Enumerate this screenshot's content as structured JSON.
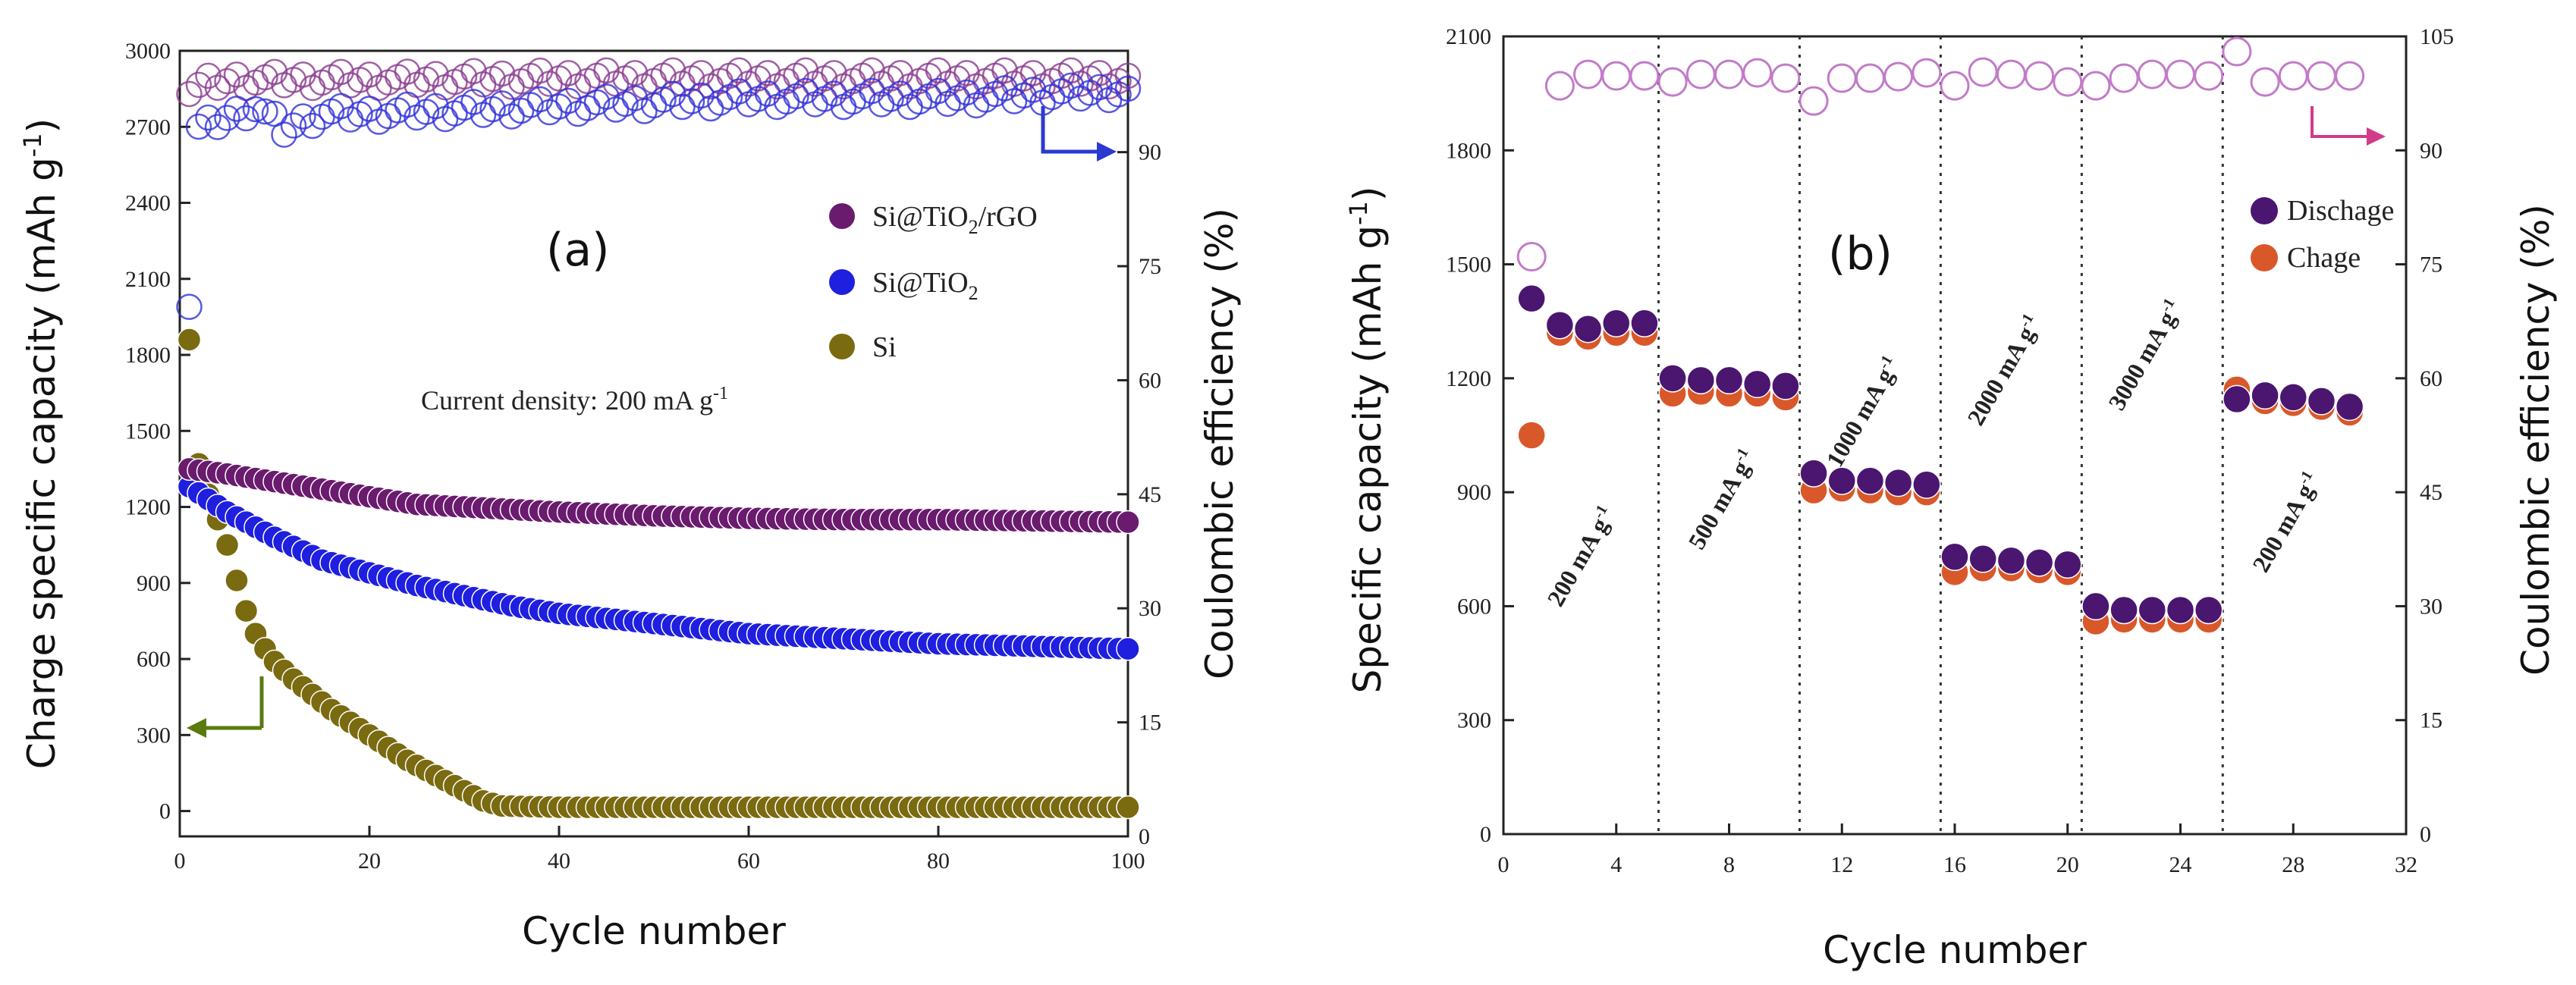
{
  "chart_data": [
    {
      "type": "scatter",
      "panel_label": "(a)",
      "xlabel": "Cycle number",
      "ylabel": "Charge specific capacity",
      "ylabel_unit": "(mAh g",
      "ylabel_unit_sup": "-1",
      "ylabel_unit_close": ")",
      "y2label": "Coulombic efficiency (%)",
      "xlim": [
        0,
        100
      ],
      "ylim": [
        -100,
        3000
      ],
      "y2lim": [
        0,
        103.33
      ],
      "xticks": [
        0,
        20,
        40,
        60,
        80,
        100
      ],
      "yticks": [
        0,
        300,
        600,
        900,
        1200,
        1500,
        1800,
        2100,
        2400,
        2700,
        3000
      ],
      "y2ticks": [
        0,
        15,
        30,
        45,
        60,
        75,
        90
      ],
      "annotation_prefix": "Current density:",
      "annotation_value": "200 mA g",
      "annotation_sup": "-1",
      "legend": [
        {
          "label": "Si@TiO",
          "sub": "2",
          "suffix": "/rGO",
          "color": "#6a1b6e"
        },
        {
          "label": "Si@TiO",
          "sub": "2",
          "suffix": "",
          "color": "#1f1fe0"
        },
        {
          "label": "Si",
          "sub": "",
          "suffix": "",
          "color": "#7a6a10"
        }
      ],
      "series": [
        {
          "name": "Si@TiO2/rGO capacity",
          "color": "#6a1b6e",
          "points": [
            [
              1,
              1350
            ],
            [
              5,
              1330
            ],
            [
              10,
              1300
            ],
            [
              15,
              1270
            ],
            [
              20,
              1240
            ],
            [
              25,
              1210
            ],
            [
              30,
              1200
            ],
            [
              40,
              1180
            ],
            [
              50,
              1165
            ],
            [
              60,
              1155
            ],
            [
              70,
              1150
            ],
            [
              80,
              1150
            ],
            [
              90,
              1145
            ],
            [
              100,
              1140
            ]
          ]
        },
        {
          "name": "Si@TiO2 capacity",
          "color": "#1f1fe0",
          "points": [
            [
              1,
              1280
            ],
            [
              5,
              1180
            ],
            [
              10,
              1080
            ],
            [
              15,
              990
            ],
            [
              20,
              940
            ],
            [
              25,
              890
            ],
            [
              30,
              850
            ],
            [
              35,
              810
            ],
            [
              40,
              780
            ],
            [
              50,
              740
            ],
            [
              60,
              700
            ],
            [
              70,
              680
            ],
            [
              80,
              660
            ],
            [
              90,
              650
            ],
            [
              100,
              640
            ]
          ]
        },
        {
          "name": "Si capacity",
          "color": "#7a6a10",
          "points": [
            [
              1,
              1860
            ],
            [
              2,
              1370
            ],
            [
              3,
              1250
            ],
            [
              4,
              1150
            ],
            [
              5,
              1050
            ],
            [
              6,
              910
            ],
            [
              7,
              790
            ],
            [
              8,
              700
            ],
            [
              9,
              640
            ],
            [
              10,
              590
            ],
            [
              12,
              520
            ],
            [
              14,
              460
            ],
            [
              16,
              400
            ],
            [
              18,
              350
            ],
            [
              20,
              300
            ],
            [
              22,
              250
            ],
            [
              24,
              200
            ],
            [
              26,
              160
            ],
            [
              28,
              120
            ],
            [
              30,
              80
            ],
            [
              32,
              40
            ],
            [
              34,
              20
            ],
            [
              40,
              15
            ],
            [
              60,
              15
            ],
            [
              80,
              15
            ],
            [
              100,
              15
            ]
          ]
        },
        {
          "name": "Si@TiO2/rGO efficiency",
          "color": "#8a3a8e",
          "points": [
            [
              1,
              98
            ],
            [
              3,
              99
            ],
            [
              6,
              99.5
            ],
            [
              10,
              99.5
            ],
            [
              20,
              99.5
            ],
            [
              40,
              99.7
            ],
            [
              60,
              99.7
            ],
            [
              80,
              99.7
            ],
            [
              100,
              99.7
            ]
          ]
        },
        {
          "name": "Si@TiO2 efficiency",
          "color": "#3030d8",
          "points": [
            [
              1,
              70
            ],
            [
              1,
              72
            ],
            [
              2,
              93
            ],
            [
              4,
              94
            ],
            [
              8,
              96
            ],
            [
              11,
              93
            ],
            [
              15,
              95
            ],
            [
              20,
              95
            ],
            [
              30,
              95.5
            ],
            [
              40,
              96
            ],
            [
              60,
              97
            ],
            [
              80,
              97
            ],
            [
              100,
              98
            ]
          ]
        }
      ]
    },
    {
      "type": "scatter",
      "panel_label": "(b)",
      "xlabel": "Cycle number",
      "ylabel": "Specific capacity",
      "ylabel_unit": "(mAh g",
      "ylabel_unit_sup": "-1",
      "ylabel_unit_close": ")",
      "y2label": "Coulombic efficiency (%)",
      "xlim": [
        0,
        32
      ],
      "ylim": [
        0,
        2100
      ],
      "y2lim": [
        0,
        105
      ],
      "xticks": [
        0,
        4,
        8,
        12,
        16,
        20,
        24,
        28,
        32
      ],
      "yticks": [
        0,
        300,
        600,
        900,
        1200,
        1500,
        1800,
        2100
      ],
      "y2ticks": [
        0,
        15,
        30,
        45,
        60,
        75,
        90,
        105
      ],
      "rate_separators": [
        5.5,
        10.5,
        15.5,
        20.5,
        25.5
      ],
      "rate_labels": [
        "200 mA g",
        "500 mA g",
        "1000 mA g",
        "2000 mA g",
        "3000 mA g",
        "200 mA g"
      ],
      "rate_label_sup": "-1",
      "legend": [
        {
          "label": "Dischage",
          "color": "#4a1670"
        },
        {
          "label": "Chage",
          "color": "#d9582a"
        }
      ],
      "series": [
        {
          "name": "Dischage",
          "color": "#4a1670",
          "x": [
            1,
            2,
            3,
            4,
            5,
            6,
            7,
            8,
            9,
            10,
            11,
            12,
            13,
            14,
            15,
            16,
            17,
            18,
            19,
            20,
            21,
            22,
            23,
            24,
            25,
            26,
            27,
            28,
            29,
            30
          ],
          "values": [
            1410,
            1340,
            1330,
            1345,
            1345,
            1200,
            1195,
            1195,
            1185,
            1180,
            950,
            930,
            930,
            925,
            920,
            730,
            725,
            720,
            715,
            710,
            600,
            590,
            590,
            590,
            590,
            1145,
            1155,
            1150,
            1140,
            1125
          ]
        },
        {
          "name": "Chage",
          "color": "#d9582a",
          "x": [
            1,
            2,
            3,
            4,
            5,
            6,
            7,
            8,
            9,
            10,
            11,
            12,
            13,
            14,
            15,
            16,
            17,
            18,
            19,
            20,
            21,
            22,
            23,
            24,
            25,
            26,
            27,
            28,
            29,
            30
          ],
          "values": [
            1050,
            1320,
            1310,
            1320,
            1320,
            1160,
            1165,
            1160,
            1160,
            1150,
            905,
            910,
            905,
            900,
            900,
            690,
            700,
            700,
            695,
            690,
            560,
            565,
            565,
            565,
            565,
            1170,
            1140,
            1135,
            1125,
            1110
          ]
        },
        {
          "name": "Coulombic efficiency",
          "color": "#c27bc8",
          "x": [
            1,
            2,
            3,
            4,
            5,
            6,
            7,
            8,
            9,
            10,
            11,
            12,
            13,
            14,
            15,
            16,
            17,
            18,
            19,
            20,
            21,
            22,
            23,
            24,
            25,
            26,
            27,
            28,
            29,
            30
          ],
          "values": [
            76,
            98.5,
            100,
            99.8,
            99.8,
            99,
            100,
            100,
            100.2,
            99.5,
            96.5,
            99.5,
            99.5,
            99.7,
            100.2,
            98.5,
            100.3,
            100,
            99.8,
            99,
            98.5,
            99.5,
            100,
            100,
            99.8,
            103,
            99,
            99.8,
            99.8,
            99.8
          ]
        }
      ]
    }
  ]
}
